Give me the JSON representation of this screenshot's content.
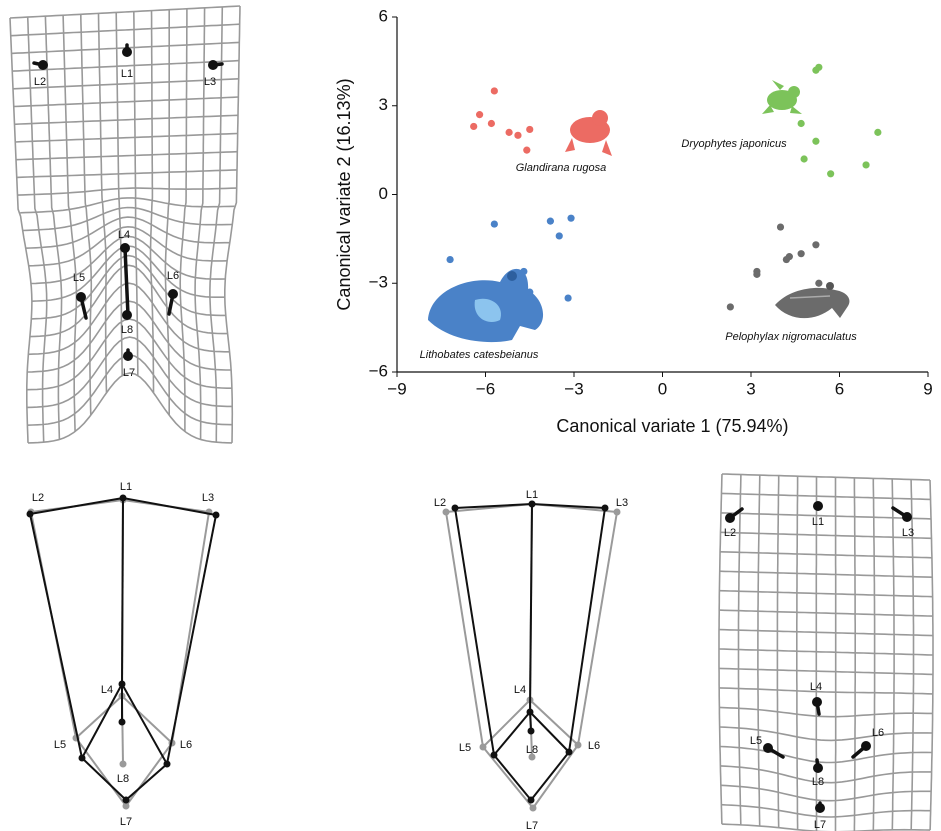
{
  "chart_data": {
    "type": "scatter",
    "xlabel": "Canonical variate 1 (75.94%)",
    "ylabel": "Canonical variate 2 (16.13%)",
    "xlim": [
      -9,
      9
    ],
    "ylim": [
      -6,
      6
    ],
    "xticks": [
      {
        "value": -9,
        "label": "−9"
      },
      {
        "value": -6,
        "label": "−6"
      },
      {
        "value": -3,
        "label": "−3"
      },
      0,
      3,
      6,
      9
    ],
    "yticks": [
      {
        "value": -6,
        "label": "−6"
      },
      {
        "value": -3,
        "label": "−3"
      },
      0,
      3,
      6
    ],
    "series": [
      {
        "name": "Glandirana rugosa",
        "color": "#ec6b63",
        "x": [
          -5.7,
          -6.2,
          -6.4,
          -5.8,
          -5.2,
          -4.9,
          -4.5,
          -4.6
        ],
        "values": [
          3.5,
          2.7,
          2.3,
          2.4,
          2.1,
          2.0,
          2.2,
          1.5
        ]
      },
      {
        "name": "Dryophytes japonicus",
        "color": "#7cc35a",
        "x": [
          5.2,
          5.3,
          4.7,
          5.2,
          4.8,
          5.7,
          6.9,
          7.3
        ],
        "values": [
          4.2,
          4.3,
          2.4,
          1.8,
          1.2,
          0.7,
          1.0,
          2.1
        ]
      },
      {
        "name": "Lithobates catesbeianus",
        "color": "#4a82c8",
        "x": [
          -5.7,
          -7.2,
          -3.8,
          -3.1,
          -3.5,
          -4.7,
          -4.5,
          -3.2
        ],
        "values": [
          -1.0,
          -2.2,
          -0.9,
          -0.8,
          -1.4,
          -2.6,
          -3.3,
          -3.5
        ]
      },
      {
        "name": "Pelophylax nigromaculatus",
        "color": "#6b6b6b",
        "x": [
          4.0,
          5.2,
          4.7,
          4.3,
          4.2,
          3.2,
          3.2,
          5.3,
          2.3
        ],
        "values": [
          -1.1,
          -1.7,
          -2.0,
          -2.1,
          -2.2,
          -2.6,
          -2.7,
          -3.0,
          -3.8
        ]
      }
    ]
  },
  "landmark_panels": [
    {
      "labels": [
        "L1",
        "L2",
        "L3",
        "L4",
        "L5",
        "L6",
        "L7",
        "L8"
      ]
    },
    {
      "labels": [
        "L1",
        "L2",
        "L3",
        "L4",
        "L5",
        "L6",
        "L7",
        "L8"
      ]
    },
    {
      "labels": [
        "L1",
        "L2",
        "L3",
        "L4",
        "L5",
        "L6",
        "L7",
        "L8"
      ]
    },
    {
      "labels": [
        "L1",
        "L2",
        "L3",
        "L4",
        "L5",
        "L6",
        "L7",
        "L8"
      ]
    }
  ]
}
